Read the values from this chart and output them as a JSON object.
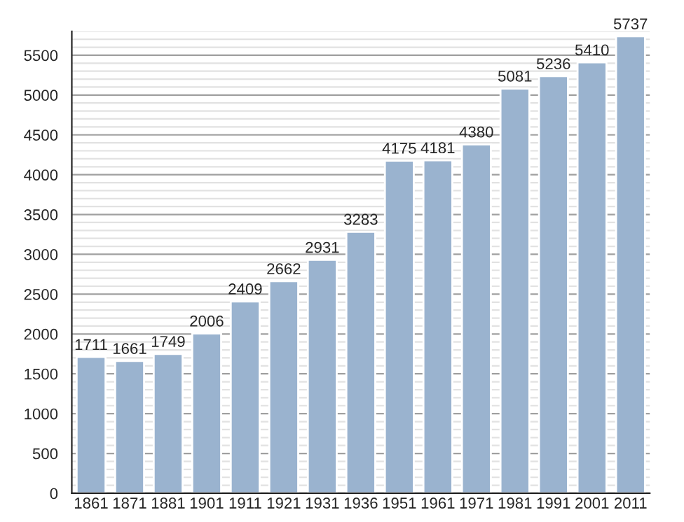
{
  "chart_data": {
    "type": "bar",
    "categories": [
      "1861",
      "1871",
      "1881",
      "1901",
      "1911",
      "1921",
      "1931",
      "1936",
      "1951",
      "1961",
      "1971",
      "1981",
      "1991",
      "2001",
      "2011"
    ],
    "values": [
      1711,
      1661,
      1749,
      2006,
      2409,
      2662,
      2931,
      3283,
      4175,
      4181,
      4380,
      5081,
      5236,
      5410,
      5737
    ],
    "color": "#9ab3cf",
    "data_labels": true,
    "ylim": [
      0,
      5800
    ],
    "yticks": [
      0,
      {
        "value": 100,
        "label": null
      },
      {
        "value": 200,
        "label": null
      },
      {
        "value": 300,
        "label": null
      },
      {
        "value": 400,
        "label": null
      },
      500,
      {
        "value": 600,
        "label": null
      },
      {
        "value": 700,
        "label": null
      },
      {
        "value": 800,
        "label": null
      },
      {
        "value": 900,
        "label": null
      },
      1000,
      {
        "value": 1100,
        "label": null
      },
      {
        "value": 1200,
        "label": null
      },
      {
        "value": 1300,
        "label": null
      },
      {
        "value": 1400,
        "label": null
      },
      1500,
      {
        "value": 1600,
        "label": null
      },
      {
        "value": 1700,
        "label": null
      },
      {
        "value": 1800,
        "label": null
      },
      {
        "value": 1900,
        "label": null
      },
      2000,
      {
        "value": 2100,
        "label": null
      },
      {
        "value": 2200,
        "label": null
      },
      {
        "value": 2300,
        "label": null
      },
      {
        "value": 2400,
        "label": null
      },
      2500,
      {
        "value": 2600,
        "label": null
      },
      {
        "value": 2700,
        "label": null
      },
      {
        "value": 2800,
        "label": null
      },
      {
        "value": 2900,
        "label": null
      },
      3000,
      {
        "value": 3100,
        "label": null
      },
      {
        "value": 3200,
        "label": null
      },
      {
        "value": 3300,
        "label": null
      },
      {
        "value": 3400,
        "label": null
      },
      3500,
      {
        "value": 3600,
        "label": null
      },
      {
        "value": 3700,
        "label": null
      },
      {
        "value": 3800,
        "label": null
      },
      {
        "value": 3900,
        "label": null
      },
      4000,
      {
        "value": 4100,
        "label": null
      },
      {
        "value": 4200,
        "label": null
      },
      {
        "value": 4300,
        "label": null
      },
      {
        "value": 4400,
        "label": null
      },
      4500,
      {
        "value": 4600,
        "label": null
      },
      {
        "value": 4700,
        "label": null
      },
      {
        "value": 4800,
        "label": null
      },
      {
        "value": 4900,
        "label": null
      },
      5000,
      {
        "value": 5100,
        "label": null
      },
      {
        "value": 5200,
        "label": null
      },
      {
        "value": 5300,
        "label": null
      },
      {
        "value": 5400,
        "label": null
      },
      5500,
      {
        "value": 5600,
        "label": null
      },
      {
        "value": 5700,
        "label": null
      },
      {
        "value": 5800,
        "label": null
      }
    ],
    "grid": "y"
  }
}
